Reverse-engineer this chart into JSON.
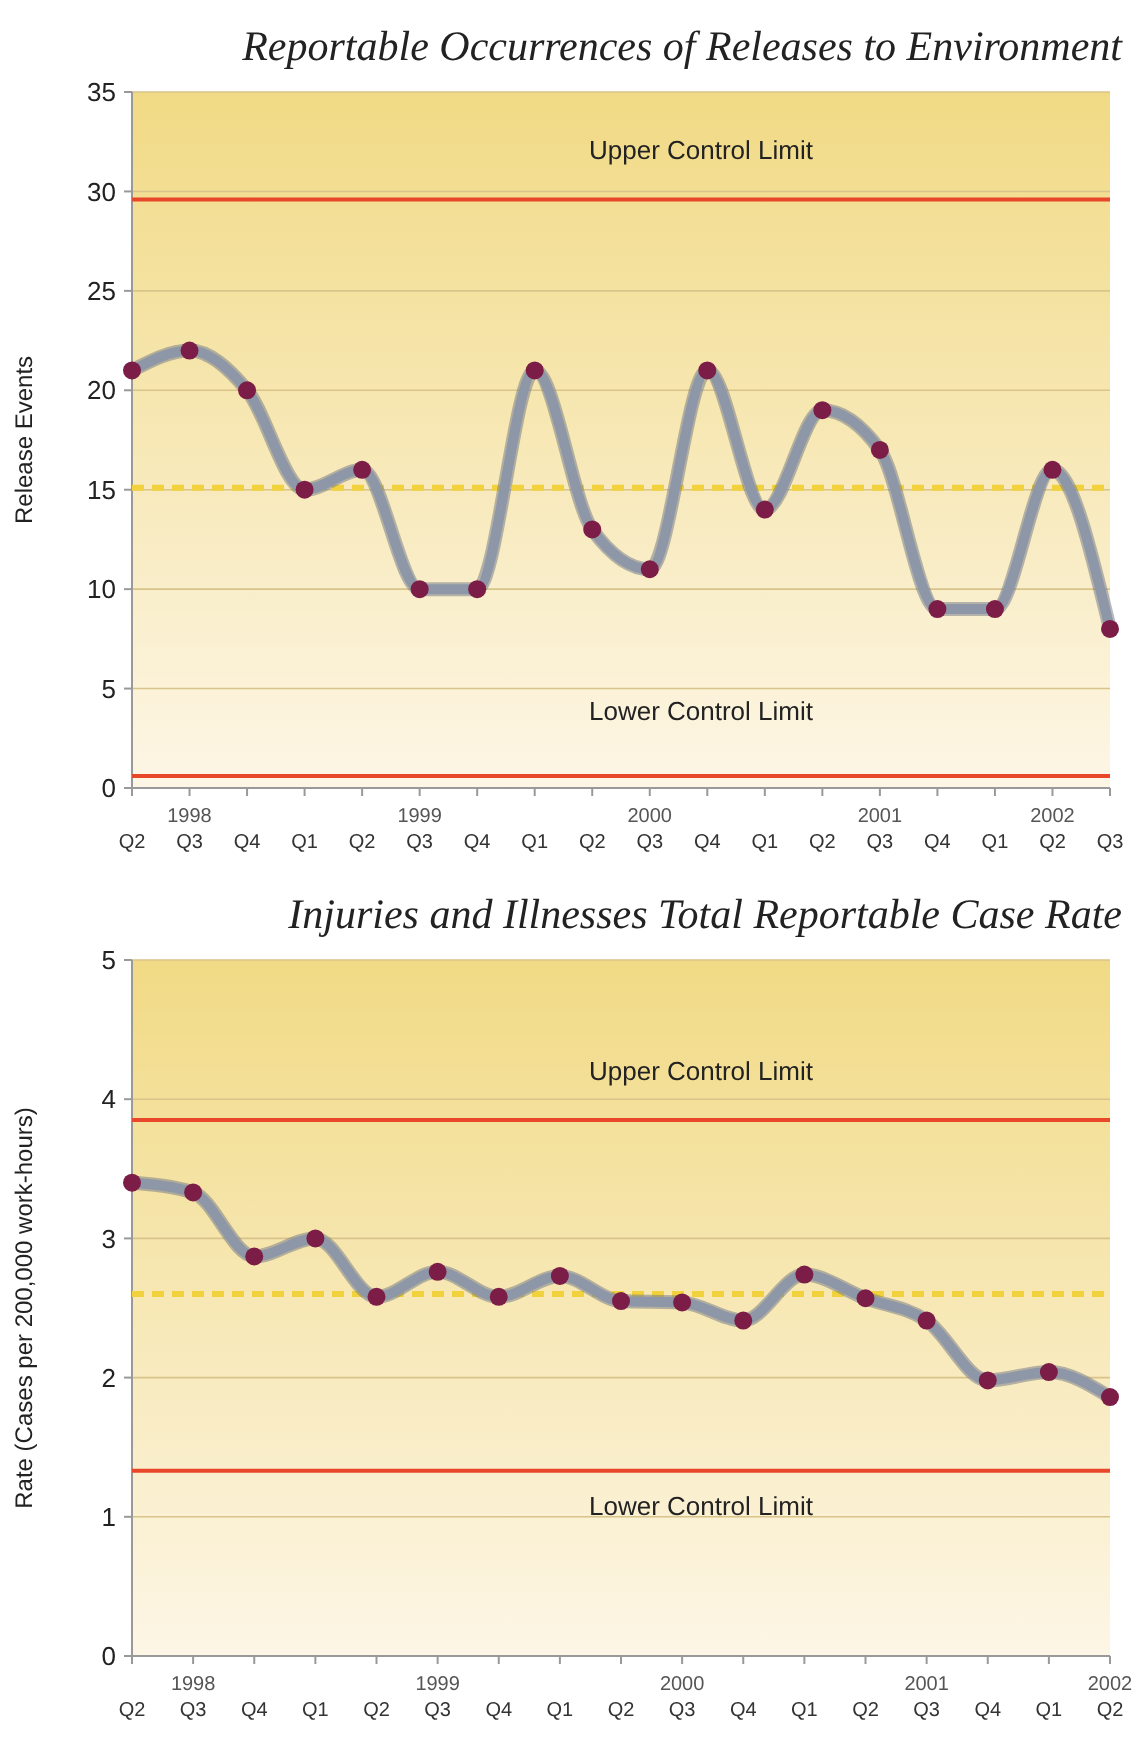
{
  "chart_data": [
    {
      "type": "line",
      "title": "Reportable Occurrences of Releases to Environment",
      "ylabel": "Release Events",
      "categories": [
        "Q2",
        "1998\nQ3",
        "Q4",
        "Q1",
        "Q2",
        "1999\nQ3",
        "Q4",
        "Q1",
        "Q2",
        "2000\nQ3",
        "Q4",
        "Q1",
        "Q2",
        "2001\nQ3",
        "Q4",
        "Q1",
        "2002\nQ2",
        "Q3"
      ],
      "series": [
        {
          "color": "#8e97a8",
          "values": [
            21,
            22,
            20,
            15,
            16,
            10,
            10,
            21,
            13,
            11,
            21,
            14,
            19,
            17,
            9,
            9,
            16,
            8
          ]
        }
      ],
      "ylim": [
        0,
        35
      ],
      "yticks": [
        0,
        5,
        10,
        15,
        20,
        25,
        30,
        35
      ],
      "ref_lines": [
        {
          "axis": "y",
          "value": 29.6,
          "label": "Upper Control Limit",
          "color": "#e8472a",
          "line_style": "solid"
        },
        {
          "axis": "y",
          "value": 15.1,
          "color": "#f2d23c",
          "line_style": "dashed"
        },
        {
          "axis": "y",
          "value": 0.6,
          "label": "Lower Control Limit",
          "color": "#e8472a",
          "line_style": "solid"
        }
      ],
      "grid": "y",
      "marker": "circle",
      "line_style": "solid"
    },
    {
      "type": "line",
      "title": "Injuries and Illnesses Total Reportable Case Rate",
      "ylabel": "Rate (Cases per 200,000 work-hours)",
      "categories": [
        "Q2",
        "1998\nQ3",
        "Q4",
        "Q1",
        "Q2",
        "1999\nQ3",
        "Q4",
        "Q1",
        "Q2",
        "2000\nQ3",
        "Q4",
        "Q1",
        "Q2",
        "2001\nQ3",
        "Q4",
        "Q1",
        "2002\nQ2"
      ],
      "series": [
        {
          "color": "#8e97a8",
          "values": [
            3.4,
            3.33,
            2.87,
            3.0,
            2.58,
            2.76,
            2.58,
            2.73,
            2.55,
            2.54,
            2.41,
            2.74,
            2.57,
            2.41,
            1.98,
            2.04,
            1.86
          ]
        }
      ],
      "ylim": [
        0,
        5
      ],
      "yticks": [
        0,
        1,
        2,
        3,
        4,
        5
      ],
      "ref_lines": [
        {
          "axis": "y",
          "value": 3.85,
          "label": "Upper Control Limit",
          "color": "#e8472a",
          "line_style": "solid"
        },
        {
          "axis": "y",
          "value": 2.6,
          "color": "#f2d23c",
          "line_style": "dashed"
        },
        {
          "axis": "y",
          "value": 1.33,
          "label": "Lower Control Limit",
          "color": "#e8472a",
          "line_style": "solid"
        }
      ],
      "grid": "y",
      "marker": "circle",
      "line_style": "solid"
    }
  ]
}
